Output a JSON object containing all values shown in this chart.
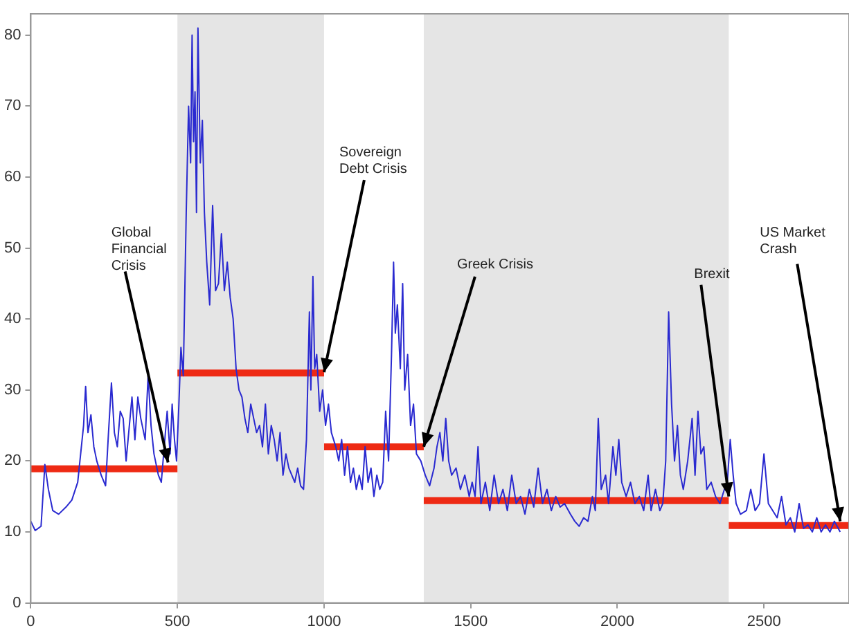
{
  "chart_data": {
    "type": "line",
    "xlim": [
      0,
      2790
    ],
    "ylim": [
      0,
      83
    ],
    "xticks": [
      0,
      500,
      1000,
      1500,
      2000,
      2500
    ],
    "yticks": [
      0,
      10,
      20,
      30,
      40,
      50,
      60,
      70,
      80
    ],
    "grid": false,
    "legend": false,
    "series": [
      {
        "color": "#2a2ad0",
        "x": [
          0,
          15,
          35,
          48,
          60,
          75,
          95,
          120,
          140,
          160,
          170,
          180,
          187,
          195,
          205,
          215,
          225,
          240,
          255,
          265,
          275,
          285,
          295,
          305,
          315,
          325,
          345,
          355,
          365,
          375,
          390,
          400,
          410,
          420,
          435,
          445,
          455,
          465,
          475,
          482,
          490,
          497,
          505,
          512,
          520,
          530,
          538,
          545,
          550,
          555,
          560,
          565,
          570,
          578,
          585,
          592,
          600,
          610,
          620,
          630,
          640,
          650,
          660,
          670,
          680,
          690,
          700,
          710,
          720,
          730,
          740,
          750,
          760,
          770,
          780,
          790,
          800,
          810,
          820,
          830,
          840,
          850,
          860,
          870,
          880,
          890,
          900,
          910,
          920,
          930,
          940,
          950,
          955,
          962,
          968,
          975,
          985,
          995,
          1005,
          1015,
          1025,
          1040,
          1050,
          1060,
          1070,
          1080,
          1090,
          1100,
          1110,
          1120,
          1130,
          1140,
          1150,
          1160,
          1170,
          1180,
          1190,
          1200,
          1210,
          1220,
          1230,
          1237,
          1243,
          1250,
          1260,
          1268,
          1275,
          1285,
          1295,
          1305,
          1315,
          1330,
          1345,
          1360,
          1375,
          1385,
          1395,
          1405,
          1415,
          1425,
          1435,
          1450,
          1465,
          1480,
          1495,
          1505,
          1515,
          1525,
          1535,
          1550,
          1565,
          1580,
          1595,
          1610,
          1625,
          1640,
          1655,
          1670,
          1685,
          1700,
          1715,
          1730,
          1745,
          1760,
          1775,
          1790,
          1805,
          1820,
          1840,
          1855,
          1870,
          1885,
          1900,
          1915,
          1925,
          1935,
          1945,
          1960,
          1970,
          1985,
          1995,
          2005,
          2015,
          2030,
          2045,
          2060,
          2075,
          2090,
          2105,
          2115,
          2130,
          2145,
          2155,
          2165,
          2175,
          2185,
          2195,
          2205,
          2215,
          2225,
          2240,
          2255,
          2265,
          2275,
          2285,
          2295,
          2305,
          2320,
          2335,
          2350,
          2365,
          2375,
          2385,
          2395,
          2405,
          2420,
          2440,
          2455,
          2470,
          2485,
          2500,
          2515,
          2530,
          2545,
          2560,
          2575,
          2590,
          2605,
          2620,
          2635,
          2650,
          2665,
          2680,
          2695,
          2710,
          2725,
          2740,
          2760
        ],
        "values": [
          11.5,
          10.2,
          10.8,
          19.5,
          16,
          13,
          12.5,
          13.5,
          14.5,
          17,
          21,
          25,
          30.5,
          24,
          26.5,
          22,
          20,
          18,
          16.5,
          24,
          31,
          24,
          22,
          27,
          26,
          20,
          29,
          23,
          29,
          26,
          23,
          32,
          25,
          21,
          18,
          17,
          22,
          27,
          21,
          28,
          23,
          20,
          28,
          36,
          32,
          55,
          70,
          62,
          80,
          65,
          72,
          55,
          81,
          62,
          68,
          55,
          48,
          42,
          56,
          44,
          45,
          52,
          44,
          48,
          43,
          40,
          33,
          30,
          29,
          26,
          24,
          28,
          26,
          24,
          25,
          22,
          28,
          21,
          25,
          23,
          20,
          24,
          18,
          21,
          19,
          18,
          17,
          19,
          16.5,
          16,
          23,
          41,
          30,
          46,
          33,
          35,
          27,
          30,
          25,
          28,
          24,
          22,
          20,
          23,
          18,
          22,
          17,
          19,
          16,
          18,
          16,
          22,
          17,
          19,
          15,
          18,
          16,
          17,
          27,
          20,
          35,
          48,
          38,
          42,
          33,
          45,
          30,
          35,
          25,
          28,
          21,
          20,
          18,
          16.5,
          19,
          22,
          24,
          20,
          26,
          20,
          18,
          19,
          16,
          18,
          15,
          17,
          15,
          22,
          14,
          17,
          13,
          18,
          14,
          16,
          13,
          18,
          14,
          15,
          12.5,
          16,
          13.5,
          19,
          14,
          16,
          13,
          15,
          13.5,
          14,
          12.5,
          11.5,
          10.8,
          12,
          11.5,
          15,
          13,
          26,
          16,
          18,
          14,
          22,
          18,
          23,
          17,
          15,
          17,
          14,
          15,
          13,
          18,
          13,
          16,
          13,
          14,
          20,
          41,
          28,
          20,
          25,
          18,
          16,
          20,
          26,
          18,
          27,
          21,
          22,
          16,
          17,
          15,
          14,
          16,
          17,
          23,
          18,
          14,
          12.5,
          13,
          16,
          13,
          14,
          21,
          14,
          13,
          12,
          15,
          11,
          12,
          10,
          14,
          10.5,
          11,
          10,
          12,
          10,
          11,
          10,
          11.5,
          10
        ]
      },
      {
        "type": "line",
        "color": "#ee2a14",
        "x": [
          0,
          500
        ],
        "values": [
          18.9,
          18.9
        ]
      },
      {
        "type": "line",
        "color": "#ee2a14",
        "x": [
          500,
          1000
        ],
        "values": [
          32.4,
          32.4
        ]
      },
      {
        "type": "line",
        "color": "#ee2a14",
        "x": [
          1000,
          1340
        ],
        "values": [
          22,
          22
        ]
      },
      {
        "type": "line",
        "color": "#ee2a14",
        "x": [
          1340,
          2380
        ],
        "values": [
          14.4,
          14.4
        ]
      },
      {
        "type": "line",
        "color": "#ee2a14",
        "x": [
          2380,
          2790
        ],
        "values": [
          10.9,
          10.9
        ]
      }
    ],
    "bands": [
      {
        "axis": "x",
        "from": 500,
        "to": 1000,
        "color": "#e5e5e5"
      },
      {
        "axis": "x",
        "from": 1340,
        "to": 2380,
        "color": "#e5e5e5"
      }
    ],
    "annotations": [
      {
        "text": "Global Financial Crisis",
        "x": 468,
        "y": 19.8
      },
      {
        "text": "Sovereign Debt Crisis",
        "x": 1000,
        "y": 32.5
      },
      {
        "text": "Greek Crisis",
        "x": 1340,
        "y": 22
      },
      {
        "text": "Brexit",
        "x": 2380,
        "y": 15
      },
      {
        "text": "US Market Crash",
        "x": 2760,
        "y": 11.5
      }
    ]
  }
}
